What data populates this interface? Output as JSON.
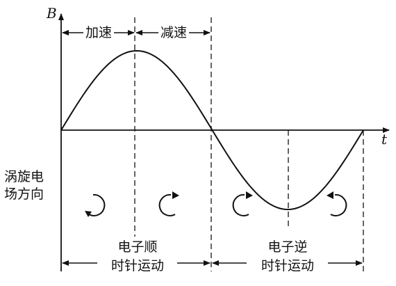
{
  "axes": {
    "y_label": "B",
    "x_label": "t"
  },
  "phases": {
    "accelerate": "加速",
    "decelerate": "减速"
  },
  "field_direction_label": [
    "涡旋电",
    "场方向"
  ],
  "motion": {
    "clockwise": [
      "电子顺",
      "时针运动"
    ],
    "counterclockwise": [
      "电子逆",
      "时针运动"
    ]
  },
  "colors": {
    "ink": "#111111",
    "background": "#ffffff"
  },
  "icons": [
    "circular-arrow-icon"
  ]
}
